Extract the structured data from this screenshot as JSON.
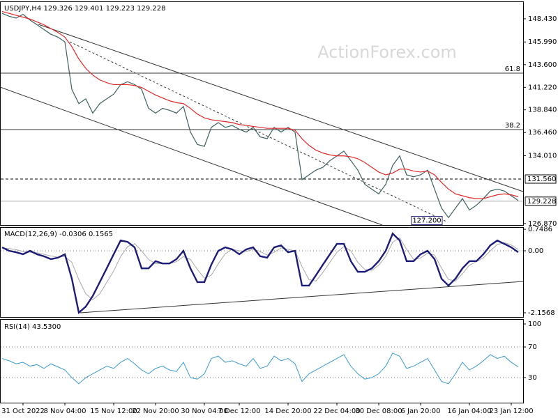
{
  "watermark": "ActionForex.com",
  "chart_data": [
    {
      "type": "line",
      "title": "USDJPY,H4",
      "ohlc": [
        129.326,
        129.401,
        129.223,
        129.228
      ],
      "ylim": [
        126.72,
        150.26
      ],
      "yticks": [
        {
          "value": 148.43,
          "label": "148.430"
        },
        {
          "value": 145.99,
          "label": "145.990"
        },
        {
          "value": 143.6,
          "label": "143.600"
        },
        {
          "value": 141.22,
          "label": "141.220"
        },
        {
          "value": 138.84,
          "label": "138.840"
        },
        {
          "value": 136.46,
          "label": "136.460"
        },
        {
          "value": 134.01,
          "label": "134.010"
        },
        {
          "value": 126.87,
          "label": "126.870"
        }
      ],
      "levels": [
        {
          "value": 142.71,
          "label": "61.8"
        },
        {
          "value": 136.77,
          "label": "38.2"
        }
      ],
      "axis_marks": [
        {
          "value": 131.56,
          "label": "131.560",
          "dashed": true
        },
        {
          "value": 129.228,
          "label": "129.228",
          "dashed": false
        }
      ],
      "annotation": {
        "value": 127.2,
        "label": "127.200"
      },
      "series": [
        {
          "color": "#3d5f60",
          "line_width": 1.2,
          "values": [
            149.0,
            148.7,
            148.5,
            148.9,
            148.3,
            147.8,
            147.3,
            146.8,
            146.5,
            146.0,
            141.0,
            139.5,
            140.0,
            138.5,
            139.5,
            140.0,
            140.5,
            141.5,
            141.8,
            141.5,
            141.0,
            139.0,
            138.5,
            139.0,
            138.8,
            138.5,
            139.2,
            136.5,
            135.2,
            135.0,
            137.0,
            137.5,
            137.0,
            137.2,
            136.8,
            136.5,
            137.0,
            136.0,
            135.8,
            137.0,
            136.5,
            137.0,
            136.5,
            131.5,
            132.0,
            132.5,
            132.8,
            133.5,
            134.0,
            134.5,
            133.5,
            132.5,
            131.0,
            130.5,
            130.0,
            131.0,
            133.0,
            134.0,
            132.0,
            131.8,
            132.0,
            132.5,
            130.5,
            128.5,
            127.5,
            128.5,
            129.5,
            128.3,
            128.8,
            129.5,
            130.3,
            130.5,
            130.3,
            129.8,
            129.3
          ]
        },
        {
          "color": "#e02a2a",
          "line_width": 1.2,
          "values": [
            149.2,
            149.0,
            148.8,
            148.6,
            148.4,
            148.1,
            147.8,
            147.4,
            147.0,
            146.5,
            145.5,
            144.2,
            143.2,
            142.5,
            142.0,
            141.7,
            141.5,
            141.5,
            141.5,
            141.4,
            141.2,
            140.8,
            140.4,
            140.1,
            139.8,
            139.6,
            139.5,
            139.0,
            138.4,
            138.0,
            137.8,
            137.7,
            137.6,
            137.5,
            137.3,
            137.2,
            137.1,
            137.0,
            136.9,
            136.9,
            136.9,
            136.9,
            136.7,
            135.8,
            135.1,
            134.6,
            134.3,
            134.1,
            134.0,
            134.0,
            133.9,
            133.7,
            133.3,
            132.8,
            132.3,
            132.0,
            132.2,
            132.6,
            132.6,
            132.4,
            132.3,
            132.4,
            132.0,
            131.2,
            130.5,
            130.0,
            129.8,
            129.6,
            129.5,
            129.5,
            129.7,
            129.9,
            130.0,
            129.9,
            129.7
          ]
        }
      ]
    },
    {
      "type": "line",
      "title": "MACD(12,26,9)",
      "readings": [
        -0.0306,
        0.1565
      ],
      "ylim": [
        -2.302,
        0.824
      ],
      "yticks": [
        0.7486,
        {
          "value": 0,
          "label": "0.00"
        },
        -2.1568
      ],
      "ref_lines": [
        0
      ],
      "series": [
        {
          "color": "#a8a8a8",
          "line_width": 1,
          "values": [
            0.1,
            0.08,
            0.04,
            -0.02,
            -0.05,
            -0.07,
            -0.12,
            -0.18,
            -0.22,
            -0.2,
            -0.4,
            -1.0,
            -1.5,
            -1.7,
            -1.5,
            -1.1,
            -0.7,
            -0.2,
            0.15,
            0.25,
            0,
            -0.3,
            -0.45,
            -0.45,
            -0.44,
            -0.38,
            -0.2,
            -0.3,
            -0.65,
            -0.95,
            -0.85,
            -0.45,
            -0.1,
            0.05,
            0,
            -0.02,
            0.05,
            -0.02,
            -0.15,
            -0.05,
            0.1,
            0.05,
            0,
            -0.55,
            -1.0,
            -1.05,
            -0.75,
            -0.4,
            -0.05,
            0.15,
            0,
            -0.4,
            -0.65,
            -0.68,
            -0.5,
            -0.2,
            0.3,
            0.45,
            0.05,
            -0.3,
            -0.25,
            -0.08,
            -0.15,
            -0.6,
            -1.0,
            -1.05,
            -0.8,
            -0.5,
            -0.38,
            -0.25,
            0,
            0.22,
            0.28,
            0.2,
            0.05
          ]
        },
        {
          "color": "#1c1c78",
          "line_width": 2.4,
          "values": [
            0.12,
            0,
            -0.05,
            -0.12,
            0,
            -0.12,
            -0.19,
            -0.29,
            -0.24,
            -0.12,
            -0.97,
            -2.15,
            -1.94,
            -1.57,
            -1.09,
            -0.61,
            -0.12,
            0.36,
            0.31,
            0.12,
            -0.61,
            -0.61,
            -0.36,
            -0.44,
            -0.44,
            -0.29,
            0,
            -0.61,
            -1.09,
            -1.09,
            -0.48,
            0,
            0.12,
            0.05,
            -0.12,
            0.05,
            0.12,
            -0.19,
            -0.24,
            0.12,
            0.19,
            -0.05,
            0,
            -1.21,
            -1.21,
            -0.85,
            -0.48,
            -0.12,
            0.24,
            0.24,
            -0.36,
            -0.73,
            -0.73,
            -0.61,
            -0.36,
            0,
            0.6,
            0.36,
            -0.36,
            -0.36,
            -0.12,
            0,
            -0.29,
            -0.97,
            -1.21,
            -0.97,
            -0.61,
            -0.36,
            -0.36,
            -0.12,
            0.19,
            0.36,
            0.24,
            0.12,
            -0.05
          ]
        }
      ]
    },
    {
      "type": "line",
      "title": "RSI(14)",
      "readings": [
        {
          "value": 43.53,
          "label": "43.5300"
        }
      ],
      "ylim": [
        -2.7,
        105.5
      ],
      "yticks": [
        100,
        70,
        30
      ],
      "ref_lines": [
        70,
        30
      ],
      "categories": [
        null,
        null,
        null,
        "31 Oct 2022",
        null,
        null,
        null,
        null,
        null,
        "8 Nov 04:00",
        null,
        null,
        null,
        null,
        null,
        null,
        "15 Nov 12:00",
        null,
        null,
        null,
        null,
        null,
        "22 Nov 20:00",
        null,
        null,
        null,
        null,
        null,
        null,
        "30 Nov 04:00",
        null,
        null,
        null,
        null,
        "7 Dec 12:00",
        null,
        null,
        null,
        null,
        null,
        null,
        "14 Dec 20:00",
        null,
        null,
        null,
        null,
        null,
        null,
        "22 Dec 04:00",
        null,
        null,
        null,
        null,
        null,
        "30 Dec 08:00",
        null,
        null,
        null,
        null,
        null,
        "6 Jan 20:00",
        null,
        null,
        null,
        null,
        null,
        null,
        "16 Jan 04:00",
        null,
        null,
        null,
        null,
        null,
        "23 Jan 12:00",
        null
      ],
      "series": [
        {
          "color": "#3a9ad0",
          "line_width": 1,
          "values": [
            55,
            52,
            48,
            50,
            45,
            47,
            42,
            48,
            44,
            40,
            30,
            22,
            30,
            35,
            40,
            45,
            42,
            50,
            55,
            48,
            40,
            35,
            42,
            45,
            40,
            38,
            50,
            30,
            28,
            35,
            55,
            58,
            50,
            52,
            48,
            45,
            55,
            42,
            45,
            58,
            52,
            55,
            48,
            25,
            35,
            40,
            45,
            50,
            55,
            60,
            45,
            35,
            28,
            30,
            35,
            45,
            62,
            58,
            42,
            45,
            50,
            55,
            40,
            25,
            22,
            35,
            50,
            40,
            45,
            52,
            60,
            55,
            58,
            50,
            44
          ]
        }
      ]
    }
  ]
}
